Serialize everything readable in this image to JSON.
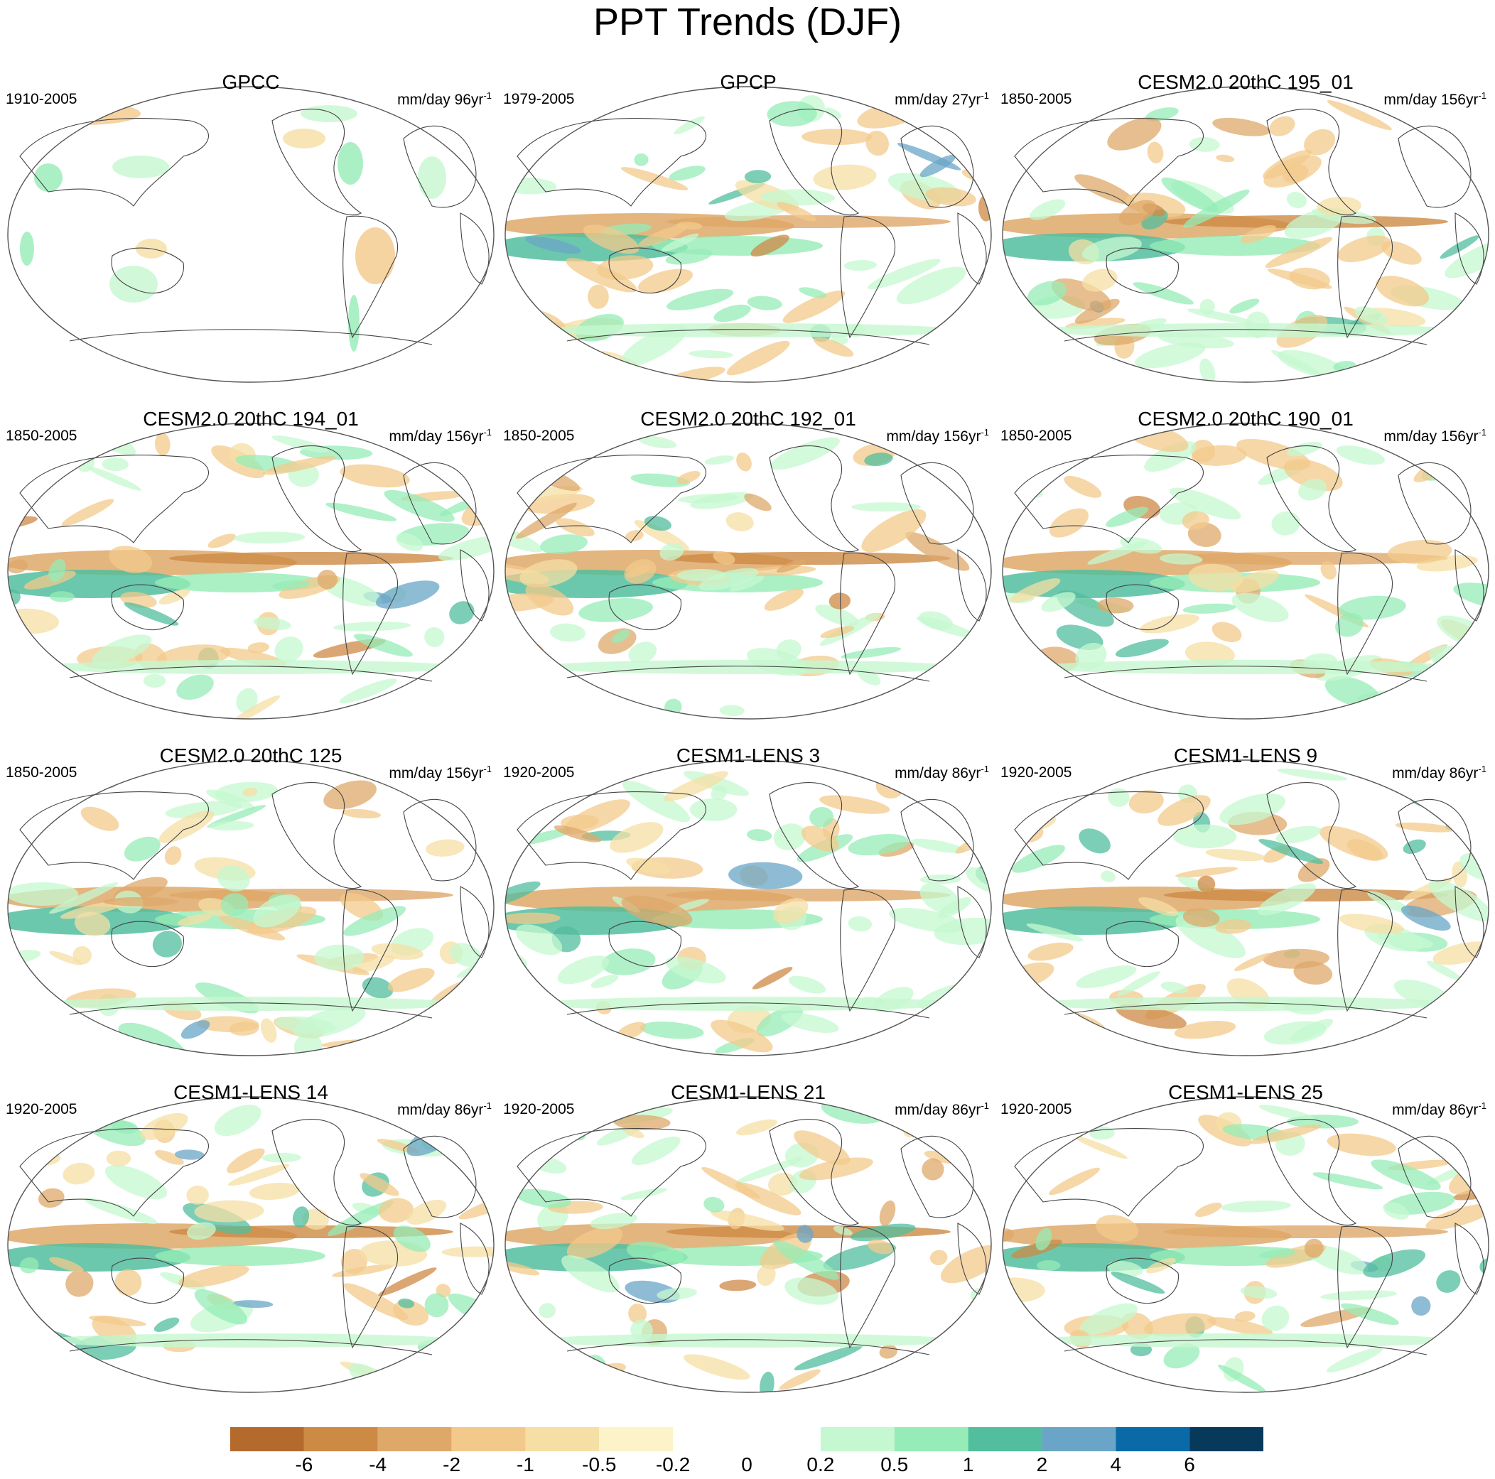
{
  "figure": {
    "title": "PPT Trends (DJF)"
  },
  "panels": [
    {
      "title": "GPCC",
      "period": "1910-2005",
      "units": "mm/day 96yr",
      "units_sup": "-1",
      "coverage": "land"
    },
    {
      "title": "GPCP",
      "period": "1979-2005",
      "units": "mm/day 27yr",
      "units_sup": "-1",
      "coverage": "global"
    },
    {
      "title": "CESM2.0 20thC 195_01",
      "period": "1850-2005",
      "units": "mm/day 156yr",
      "units_sup": "-1",
      "coverage": "global"
    },
    {
      "title": "CESM2.0 20thC 194_01",
      "period": "1850-2005",
      "units": "mm/day 156yr",
      "units_sup": "-1",
      "coverage": "global"
    },
    {
      "title": "CESM2.0 20thC 192_01",
      "period": "1850-2005",
      "units": "mm/day 156yr",
      "units_sup": "-1",
      "coverage": "global"
    },
    {
      "title": "CESM2.0 20thC 190_01",
      "period": "1850-2005",
      "units": "mm/day 156yr",
      "units_sup": "-1",
      "coverage": "global"
    },
    {
      "title": "CESM2.0 20thC 125",
      "period": "1850-2005",
      "units": "mm/day 156yr",
      "units_sup": "-1",
      "coverage": "global"
    },
    {
      "title": "CESM1-LENS 3",
      "period": "1920-2005",
      "units": "mm/day 86yr",
      "units_sup": "-1",
      "coverage": "global"
    },
    {
      "title": "CESM1-LENS 9",
      "period": "1920-2005",
      "units": "mm/day 86yr",
      "units_sup": "-1",
      "coverage": "global"
    },
    {
      "title": "CESM1-LENS 14",
      "period": "1920-2005",
      "units": "mm/day 86yr",
      "units_sup": "-1",
      "coverage": "global"
    },
    {
      "title": "CESM1-LENS 21",
      "period": "1920-2005",
      "units": "mm/day 86yr",
      "units_sup": "-1",
      "coverage": "global"
    },
    {
      "title": "CESM1-LENS 25",
      "period": "1920-2005",
      "units": "mm/day 86yr",
      "units_sup": "-1",
      "coverage": "global"
    }
  ],
  "colorbar": {
    "labels": [
      "-6",
      "-4",
      "-2",
      "-1",
      "-0.5",
      "-0.2",
      "0",
      "0.2",
      "0.5",
      "1",
      "2",
      "4",
      "6"
    ],
    "colors": [
      "#b4692d",
      "#cd8a45",
      "#dea869",
      "#f3c98b",
      "#f5dfa4",
      "#fdf3c8",
      "#ffffff",
      "#ffffff",
      "#c5f8d0",
      "#96ecb7",
      "#52be9e",
      "#6aa5c7",
      "#0a6aa8",
      "#07395b"
    ]
  }
}
